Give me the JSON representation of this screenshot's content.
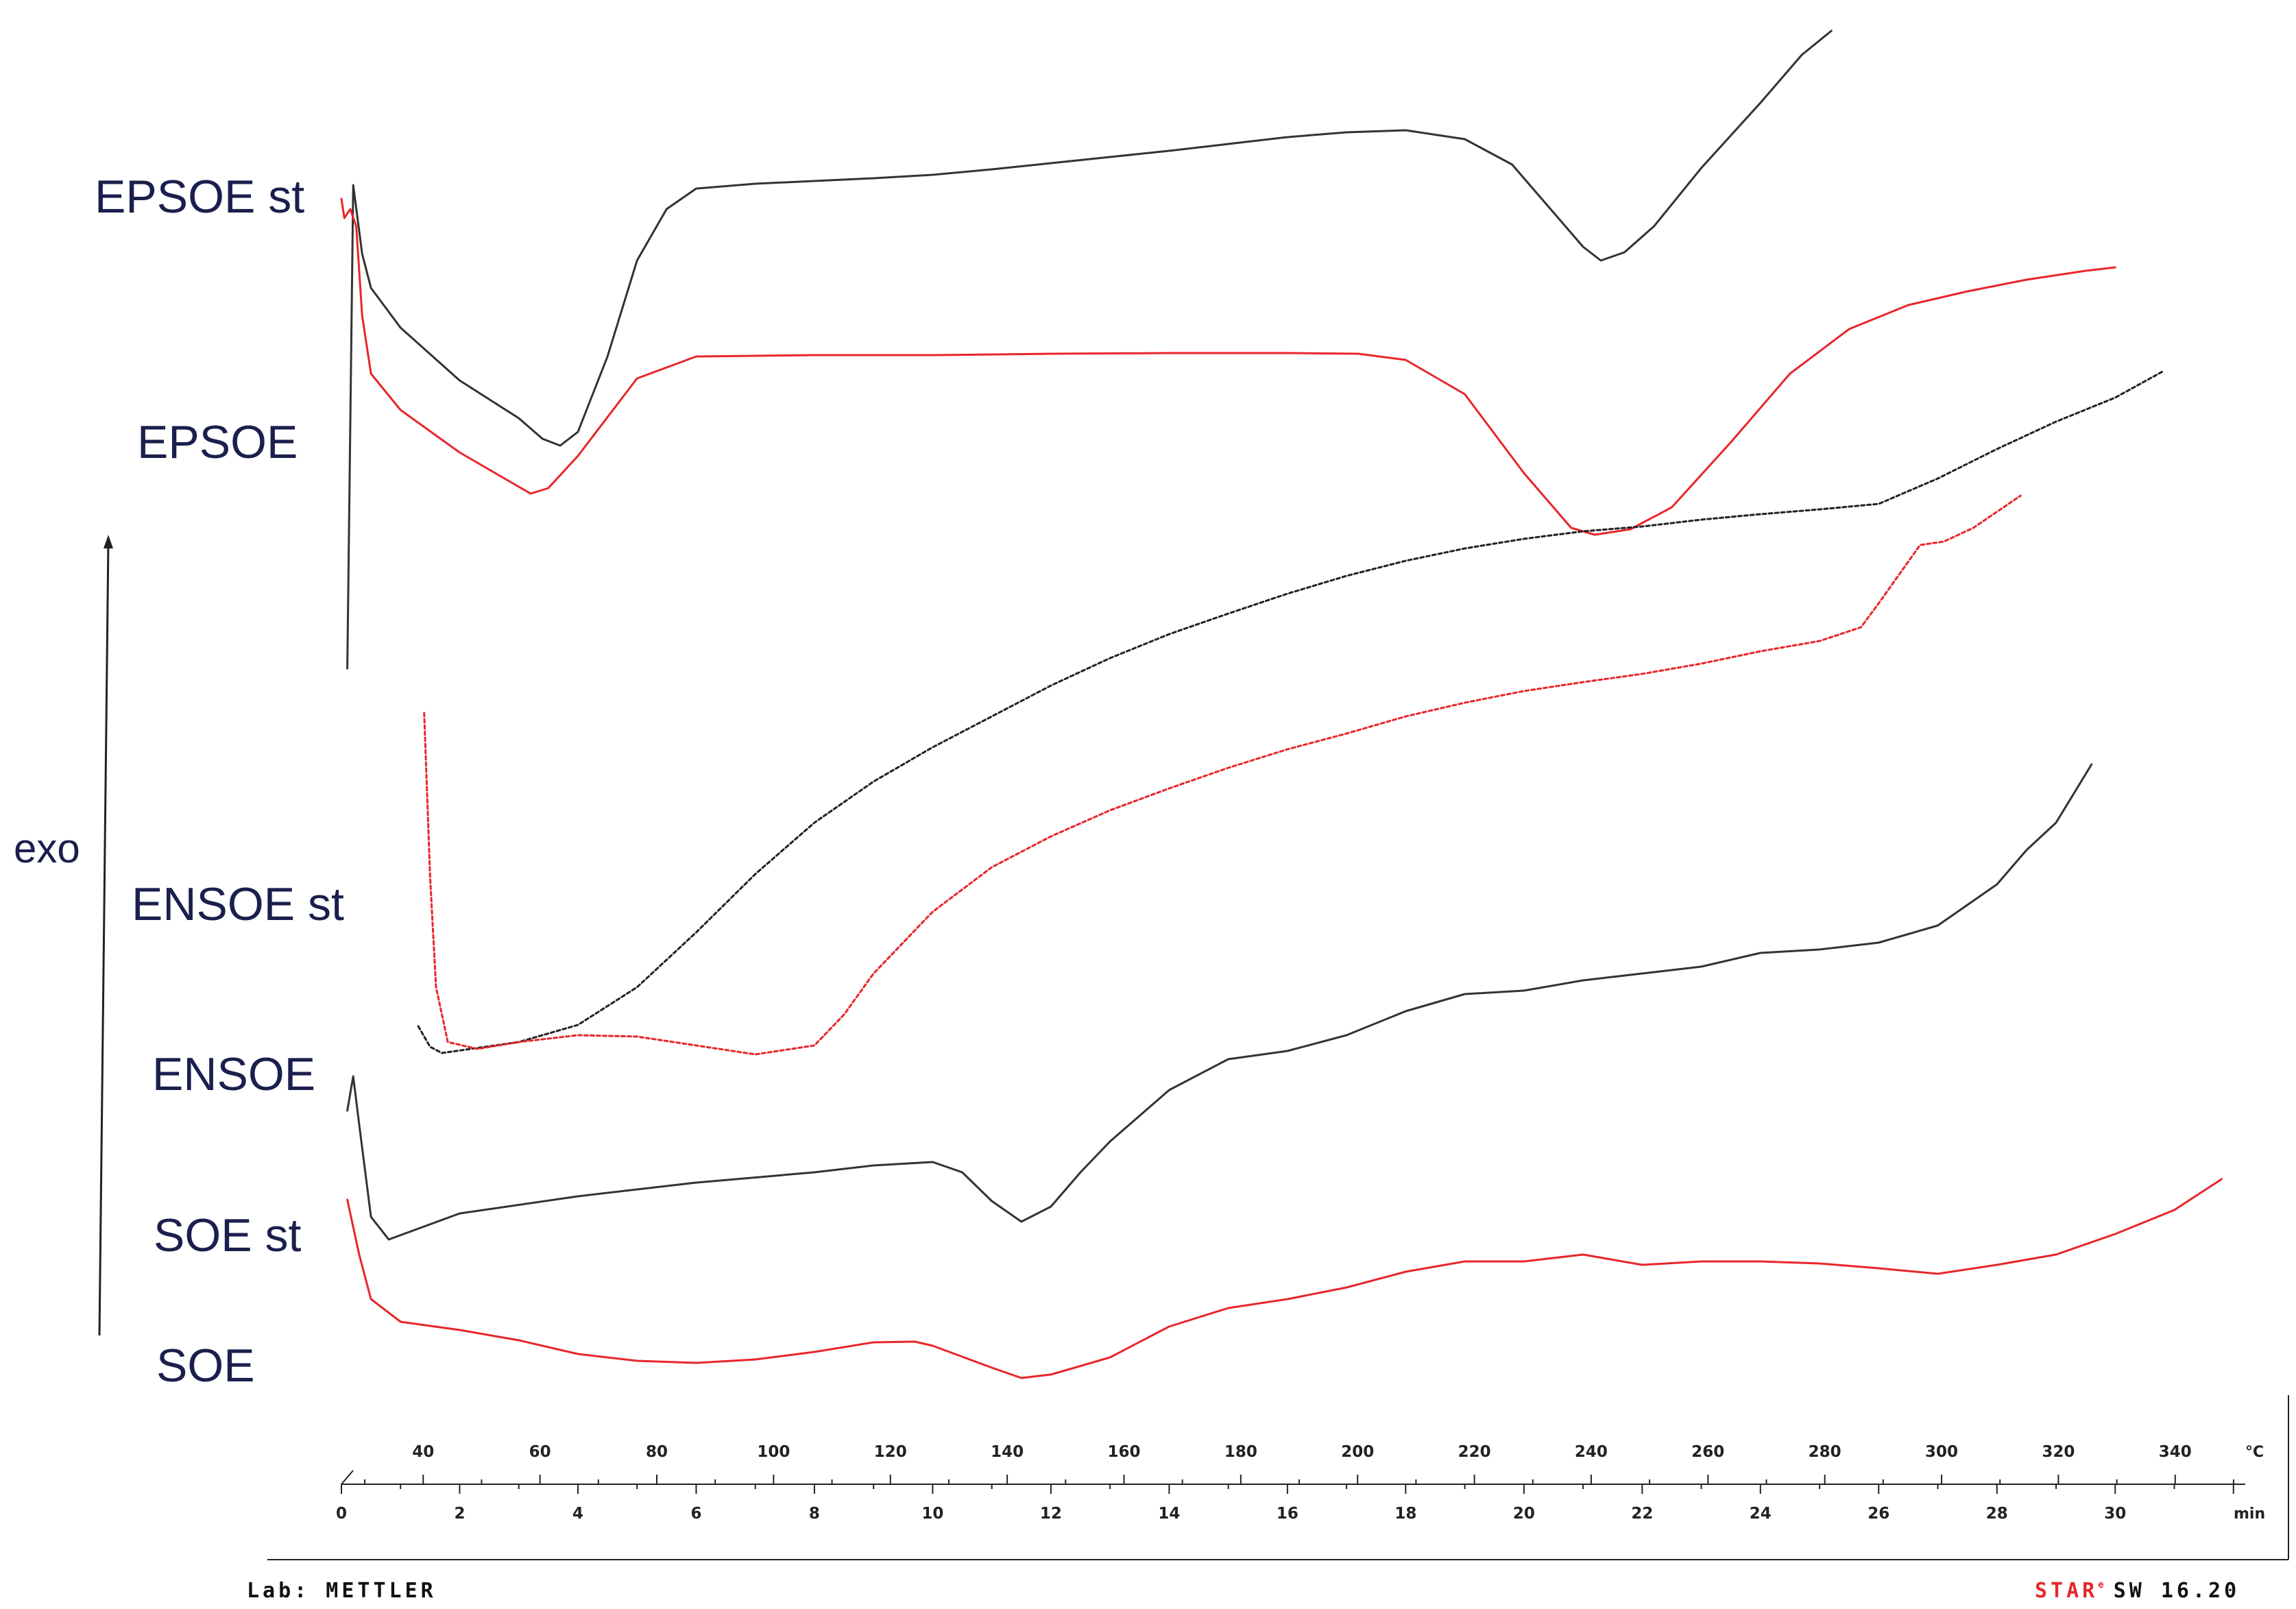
{
  "chart_data": {
    "type": "line",
    "title": "",
    "xlabel": "",
    "ylabel": "exo",
    "axes": {
      "temperature": {
        "unit": "°C",
        "ticks": [
          40,
          60,
          80,
          100,
          120,
          140,
          160,
          180,
          200,
          220,
          240,
          260,
          280,
          300,
          320,
          340
        ],
        "range": [
          26,
          352
        ]
      },
      "time": {
        "unit": "min",
        "ticks": [
          0,
          2,
          4,
          6,
          8,
          10,
          12,
          14,
          16,
          18,
          20,
          22,
          24,
          26,
          28,
          30
        ],
        "range": [
          0,
          32.2
        ]
      }
    },
    "legend": "labels-left",
    "grid": false,
    "series": [
      {
        "name": "EPSOE st",
        "color": "#333333",
        "dashed": false,
        "points": [
          [
            0.1,
            975
          ],
          [
            0.2,
            270
          ],
          [
            0.35,
            370
          ],
          [
            0.5,
            420
          ],
          [
            1,
            478
          ],
          [
            2,
            555
          ],
          [
            3,
            610
          ],
          [
            3.4,
            640
          ],
          [
            3.7,
            650
          ],
          [
            4,
            630
          ],
          [
            4.5,
            520
          ],
          [
            5,
            380
          ],
          [
            5.5,
            305
          ],
          [
            6,
            275
          ],
          [
            7,
            268
          ],
          [
            8,
            264
          ],
          [
            9,
            260
          ],
          [
            10,
            255
          ],
          [
            11,
            247
          ],
          [
            12,
            238
          ],
          [
            13,
            229
          ],
          [
            14,
            220
          ],
          [
            15,
            210
          ],
          [
            16,
            200
          ],
          [
            17,
            193
          ],
          [
            18,
            190
          ],
          [
            19,
            203
          ],
          [
            19.8,
            240
          ],
          [
            20.5,
            310
          ],
          [
            21,
            360
          ],
          [
            21.3,
            380
          ],
          [
            21.7,
            368
          ],
          [
            22.2,
            330
          ],
          [
            23,
            245
          ],
          [
            24,
            150
          ],
          [
            24.7,
            80
          ],
          [
            25.2,
            45
          ]
        ]
      },
      {
        "name": "EPSOE",
        "color": "#e8262a",
        "dashed": false,
        "points": [
          [
            0,
            290
          ],
          [
            0.05,
            318
          ],
          [
            0.15,
            305
          ],
          [
            0.25,
            330
          ],
          [
            0.35,
            460
          ],
          [
            0.5,
            545
          ],
          [
            1,
            598
          ],
          [
            2,
            660
          ],
          [
            3,
            710
          ],
          [
            3.2,
            720
          ],
          [
            3.5,
            712
          ],
          [
            4,
            665
          ],
          [
            5,
            552
          ],
          [
            6,
            520
          ],
          [
            8,
            518
          ],
          [
            10,
            518
          ],
          [
            12,
            516
          ],
          [
            14,
            515
          ],
          [
            16,
            515
          ],
          [
            17.2,
            516
          ],
          [
            18,
            525
          ],
          [
            19,
            575
          ],
          [
            20,
            690
          ],
          [
            20.8,
            770
          ],
          [
            21.2,
            780
          ],
          [
            21.8,
            772
          ],
          [
            22.5,
            740
          ],
          [
            23.5,
            645
          ],
          [
            24.5,
            545
          ],
          [
            25.5,
            480
          ],
          [
            26.5,
            445
          ],
          [
            27.5,
            425
          ],
          [
            28.5,
            408
          ],
          [
            29.5,
            395
          ],
          [
            30,
            390
          ]
        ]
      },
      {
        "name": "ENSOE st",
        "color": "#222222",
        "dashed": true,
        "points": [
          [
            1.3,
            1497
          ],
          [
            1.5,
            1527
          ],
          [
            1.7,
            1536
          ],
          [
            3,
            1520
          ],
          [
            4,
            1495
          ],
          [
            5,
            1440
          ],
          [
            6,
            1360
          ],
          [
            7,
            1275
          ],
          [
            8,
            1200
          ],
          [
            9,
            1140
          ],
          [
            10,
            1090
          ],
          [
            11,
            1045
          ],
          [
            12,
            1000
          ],
          [
            13,
            960
          ],
          [
            14,
            925
          ],
          [
            15,
            895
          ],
          [
            16,
            866
          ],
          [
            17,
            840
          ],
          [
            18,
            818
          ],
          [
            19,
            800
          ],
          [
            20,
            786
          ],
          [
            21,
            775
          ],
          [
            22,
            768
          ],
          [
            23,
            758
          ],
          [
            24,
            750
          ],
          [
            25,
            743
          ],
          [
            26,
            735
          ],
          [
            27,
            698
          ],
          [
            28,
            655
          ],
          [
            29,
            615
          ],
          [
            30,
            580
          ],
          [
            30.8,
            542
          ]
        ]
      },
      {
        "name": "ENSOE",
        "color": "#e8262a",
        "dashed": true,
        "points": [
          [
            1.4,
            1040
          ],
          [
            1.5,
            1280
          ],
          [
            1.6,
            1440
          ],
          [
            1.8,
            1520
          ],
          [
            2.3,
            1530
          ],
          [
            3,
            1520
          ],
          [
            4,
            1510
          ],
          [
            5,
            1512
          ],
          [
            6,
            1525
          ],
          [
            7,
            1538
          ],
          [
            8,
            1525
          ],
          [
            8.5,
            1480
          ],
          [
            9,
            1420
          ],
          [
            10,
            1330
          ],
          [
            11,
            1265
          ],
          [
            12,
            1220
          ],
          [
            13,
            1182
          ],
          [
            14,
            1150
          ],
          [
            15,
            1120
          ],
          [
            16,
            1093
          ],
          [
            17,
            1070
          ],
          [
            18,
            1045
          ],
          [
            19,
            1025
          ],
          [
            20,
            1008
          ],
          [
            21,
            995
          ],
          [
            22,
            983
          ],
          [
            23,
            968
          ],
          [
            24,
            950
          ],
          [
            25,
            935
          ],
          [
            25.7,
            915
          ],
          [
            26,
            880
          ],
          [
            26.7,
            795
          ],
          [
            27.1,
            790
          ],
          [
            27.6,
            770
          ],
          [
            28.4,
            723
          ]
        ]
      },
      {
        "name": "SOE st",
        "color": "#333333",
        "dashed": false,
        "points": [
          [
            0.1,
            1620
          ],
          [
            0.2,
            1570
          ],
          [
            0.3,
            1640
          ],
          [
            0.5,
            1775
          ],
          [
            0.8,
            1808
          ],
          [
            2,
            1770
          ],
          [
            4,
            1745
          ],
          [
            6,
            1725
          ],
          [
            8,
            1710
          ],
          [
            9,
            1700
          ],
          [
            10,
            1695
          ],
          [
            10.5,
            1710
          ],
          [
            11,
            1752
          ],
          [
            11.5,
            1782
          ],
          [
            12,
            1760
          ],
          [
            12.5,
            1710
          ],
          [
            13,
            1665
          ],
          [
            14,
            1590
          ],
          [
            15,
            1545
          ],
          [
            16,
            1533
          ],
          [
            17,
            1510
          ],
          [
            18,
            1475
          ],
          [
            19,
            1450
          ],
          [
            20,
            1445
          ],
          [
            21,
            1430
          ],
          [
            22,
            1420
          ],
          [
            23,
            1410
          ],
          [
            24,
            1390
          ],
          [
            25,
            1385
          ],
          [
            26,
            1375
          ],
          [
            27,
            1350
          ],
          [
            28,
            1290
          ],
          [
            28.5,
            1240
          ],
          [
            29,
            1200
          ],
          [
            29.6,
            1115
          ]
        ]
      },
      {
        "name": "SOE",
        "color": "#e8262a",
        "dashed": false,
        "points": [
          [
            0.1,
            1750
          ],
          [
            0.3,
            1830
          ],
          [
            0.5,
            1895
          ],
          [
            1,
            1928
          ],
          [
            2,
            1940
          ],
          [
            3,
            1955
          ],
          [
            4,
            1975
          ],
          [
            5,
            1985
          ],
          [
            6,
            1988
          ],
          [
            7,
            1983
          ],
          [
            8,
            1972
          ],
          [
            9,
            1958
          ],
          [
            9.7,
            1957
          ],
          [
            10,
            1963
          ],
          [
            11,
            1995
          ],
          [
            11.5,
            2010
          ],
          [
            12,
            2005
          ],
          [
            13,
            1980
          ],
          [
            14,
            1935
          ],
          [
            15,
            1908
          ],
          [
            16,
            1895
          ],
          [
            17,
            1878
          ],
          [
            18,
            1855
          ],
          [
            19,
            1840
          ],
          [
            20,
            1840
          ],
          [
            21,
            1830
          ],
          [
            22,
            1845
          ],
          [
            23,
            1840
          ],
          [
            24,
            1840
          ],
          [
            25,
            1843
          ],
          [
            26,
            1850
          ],
          [
            27,
            1858
          ],
          [
            28,
            1845
          ],
          [
            29,
            1830
          ],
          [
            30,
            1800
          ],
          [
            31,
            1765
          ],
          [
            31.8,
            1720
          ]
        ]
      }
    ],
    "footer": {
      "lab": "Lab: METTLER",
      "star": "STAR",
      "star_mark": "e",
      "software": "SW 16.20"
    }
  }
}
